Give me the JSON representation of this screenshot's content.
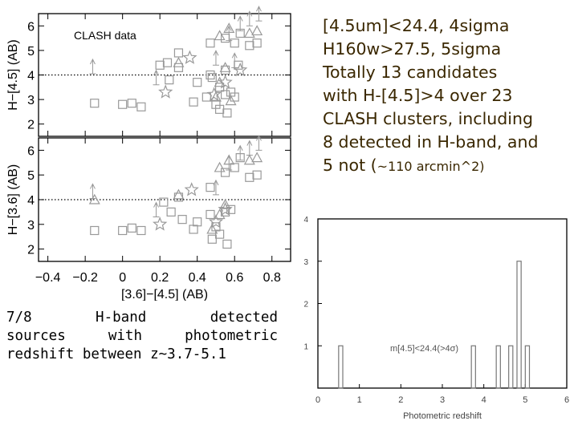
{
  "headline": {
    "lines": [
      "[4.5um]<24.4, 4sigma",
      "H160w>27.5, 5sigma",
      "Totally 13 candidates",
      "with H-[4.5]>4 over 23",
      "CLASH clusters, including",
      "8 detected in H-band, and"
    ],
    "last_prefix": "5 not (",
    "last_small": "~110 arcmin^2)"
  },
  "caption": {
    "line1": "7/8 H-band detected",
    "line2": "sources with photometric",
    "line3": "redshift between z~3.7-5.1"
  },
  "colors": {
    "text_headline": "#3a2700",
    "plot": "#999999",
    "axes": "#000000"
  },
  "chart_data": [
    {
      "type": "scatter",
      "annotation": "CLASH data",
      "xlabel": "[3.6]−[4.5] (AB)",
      "ylabel": "H−[4.5] (AB)",
      "xlim": [
        -0.45,
        0.9
      ],
      "ylim": [
        1.5,
        6.5
      ],
      "xticks": [
        -0.4,
        -0.2,
        0,
        0.2,
        0.4,
        0.6,
        0.8
      ],
      "xtick_labels": [
        "−0.4",
        "−0.2",
        "0",
        "0.2",
        "0.4",
        "0.6",
        "0.8"
      ],
      "yticks": [
        2,
        3,
        4,
        5,
        6
      ],
      "ytick_labels": [
        "2",
        "3",
        "4",
        "5",
        "6"
      ],
      "hline": 4.0,
      "squares": [
        [
          0.2,
          4.4
        ],
        [
          0.24,
          4.5
        ],
        [
          0.3,
          4.3
        ],
        [
          0.47,
          4.0
        ],
        [
          0.55,
          4.2
        ],
        [
          0.62,
          4.4
        ],
        [
          0.1,
          2.7
        ],
        [
          0.0,
          2.8
        ],
        [
          0.05,
          2.85
        ],
        [
          0.25,
          3.8
        ],
        [
          0.4,
          3.7
        ],
        [
          0.48,
          3.9
        ],
        [
          0.52,
          3.5
        ],
        [
          0.6,
          3.1
        ],
        [
          0.45,
          3.1
        ],
        [
          0.55,
          3.2
        ],
        [
          0.58,
          3.3
        ],
        [
          0.52,
          2.6
        ],
        [
          0.56,
          2.45
        ],
        [
          0.5,
          2.8
        ],
        [
          0.38,
          2.9
        ],
        [
          0.3,
          4.9
        ],
        [
          0.47,
          5.3
        ],
        [
          0.68,
          5.2
        ],
        [
          0.72,
          5.3
        ],
        [
          0.55,
          5.5
        ],
        [
          0.6,
          5.3
        ],
        [
          0.63,
          5.7
        ],
        [
          -0.15,
          2.85
        ]
      ],
      "triangles": [
        [
          0.52,
          5.6
        ],
        [
          0.57,
          5.9
        ],
        [
          0.68,
          5.7
        ],
        [
          0.72,
          5.8
        ],
        [
          0.3,
          4.5
        ],
        [
          0.55,
          4.3
        ],
        [
          0.52,
          3.7
        ],
        [
          0.5,
          3.1
        ],
        [
          0.58,
          2.95
        ]
      ],
      "stars": [
        [
          0.36,
          4.7
        ],
        [
          0.23,
          3.3
        ],
        [
          0.49,
          3.2
        ],
        [
          0.63,
          4.2
        ],
        [
          0.55,
          3.7
        ]
      ],
      "arrows": [
        [
          -0.16,
          4.05
        ],
        [
          0.18,
          3.6
        ],
        [
          0.5,
          4.4
        ],
        [
          0.57,
          5.4
        ],
        [
          0.63,
          5.8
        ],
        [
          0.68,
          6.0
        ],
        [
          0.73,
          6.2
        ],
        [
          0.6,
          4.3
        ]
      ]
    },
    {
      "type": "scatter",
      "xlabel": "[3.6]−[4.5] (AB)",
      "ylabel": "H−[3.6] (AB)",
      "xlim": [
        -0.45,
        0.9
      ],
      "ylim": [
        1.5,
        6.5
      ],
      "yticks": [
        2,
        3,
        4,
        5,
        6
      ],
      "ytick_labels": [
        "2",
        "3",
        "4",
        "5",
        "6"
      ],
      "hline": 4.0,
      "squares": [
        [
          0.22,
          3.9
        ],
        [
          0.26,
          3.5
        ],
        [
          0.32,
          3.2
        ],
        [
          0.47,
          3.4
        ],
        [
          0.55,
          3.5
        ],
        [
          0.1,
          2.75
        ],
        [
          0.0,
          2.75
        ],
        [
          0.05,
          2.85
        ],
        [
          0.4,
          3.1
        ],
        [
          0.48,
          2.4
        ],
        [
          0.52,
          2.6
        ],
        [
          0.56,
          2.2
        ],
        [
          0.5,
          2.9
        ],
        [
          0.38,
          2.8
        ],
        [
          0.3,
          4.1
        ],
        [
          0.47,
          4.5
        ],
        [
          0.68,
          4.9
        ],
        [
          0.72,
          5.0
        ],
        [
          0.55,
          5.1
        ],
        [
          0.6,
          5.3
        ],
        [
          0.63,
          5.7
        ],
        [
          -0.15,
          2.75
        ],
        [
          0.58,
          3.6
        ]
      ],
      "triangles": [
        [
          -0.15,
          4.0
        ],
        [
          0.52,
          5.3
        ],
        [
          0.57,
          5.6
        ],
        [
          0.68,
          5.6
        ],
        [
          0.72,
          5.7
        ],
        [
          0.3,
          4.2
        ],
        [
          0.55,
          3.8
        ],
        [
          0.52,
          3.4
        ],
        [
          0.48,
          2.8
        ]
      ],
      "stars": [
        [
          0.37,
          4.4
        ],
        [
          0.2,
          3.0
        ],
        [
          0.5,
          3.1
        ],
        [
          0.55,
          3.6
        ]
      ],
      "arrows": [
        [
          -0.16,
          4.05
        ],
        [
          0.18,
          3.3
        ],
        [
          0.5,
          4.2
        ],
        [
          0.57,
          5.2
        ],
        [
          0.63,
          5.6
        ],
        [
          0.68,
          5.8
        ],
        [
          0.73,
          6.0
        ]
      ]
    },
    {
      "type": "bar",
      "xlabel": "Photometric redshift",
      "annotation": "m[4.5]<24.4(>4σ)",
      "xlim": [
        0,
        6
      ],
      "ylim": [
        0,
        4
      ],
      "xticks": [
        0,
        1,
        2,
        3,
        4,
        5,
        6
      ],
      "xtick_labels": [
        "0",
        "1",
        "2",
        "3",
        "4",
        "5",
        "6"
      ],
      "yticks": [
        1,
        2,
        3,
        4
      ],
      "ytick_labels": [
        "1",
        "2",
        "3",
        "4"
      ],
      "bin_width": 0.1,
      "bars": [
        [
          0.5,
          1
        ],
        [
          3.7,
          1
        ],
        [
          4.3,
          1
        ],
        [
          4.6,
          1
        ],
        [
          4.8,
          3
        ],
        [
          5.0,
          1
        ]
      ]
    }
  ]
}
